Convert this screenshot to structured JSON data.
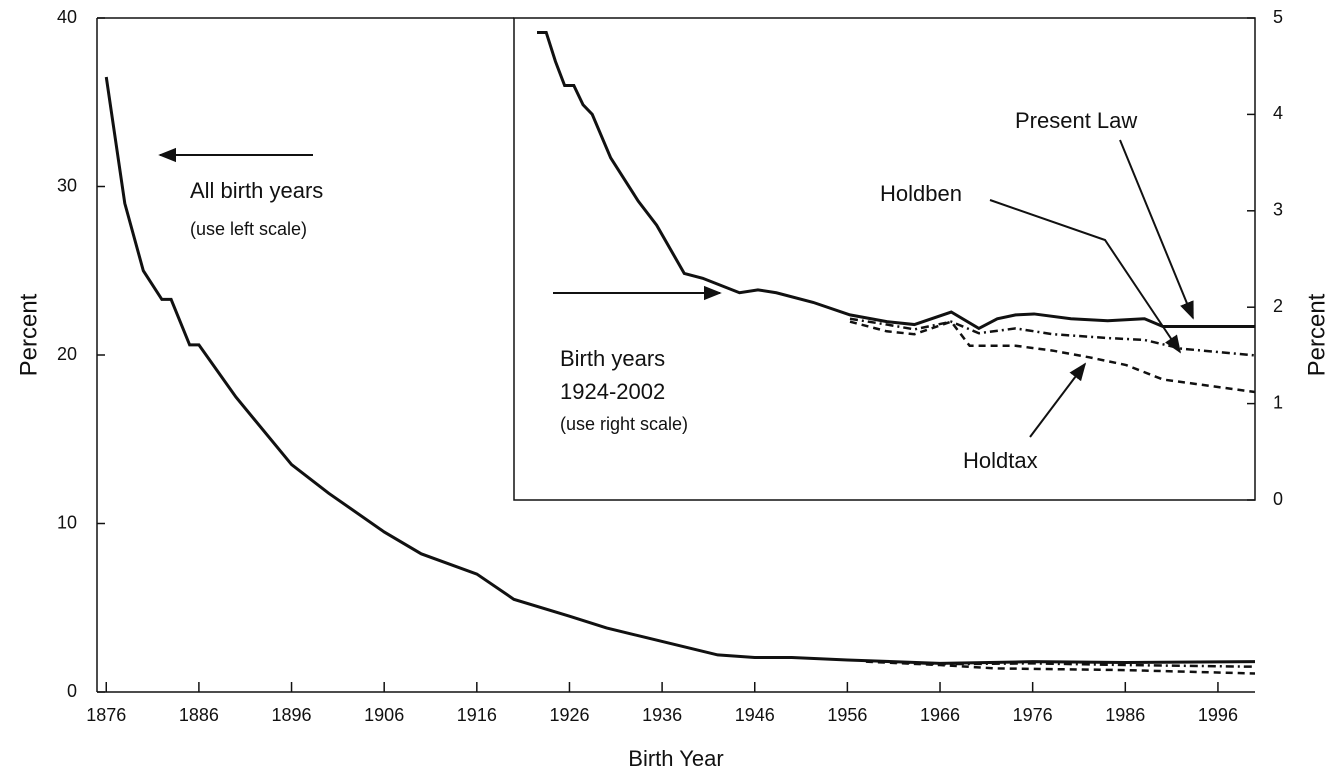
{
  "chart_data": [
    {
      "type": "line",
      "xlabel": "Birth Year",
      "ylabel": "Percent",
      "xlim": [
        1875,
        2000
      ],
      "xticks": [
        1876,
        1886,
        1896,
        1906,
        1916,
        1926,
        1936,
        1946,
        1956,
        1966,
        1976,
        1986,
        1996
      ],
      "ylim": [
        0,
        40
      ],
      "yticks": [
        0,
        10,
        20,
        30,
        40
      ],
      "annotations": [
        "All birth years",
        "(use left scale)"
      ],
      "series": [
        {
          "color": "#111111",
          "dash": "solid",
          "x": [
            1876,
            1878,
            1880,
            1882,
            1883,
            1885,
            1886,
            1890,
            1896,
            1900,
            1906,
            1910,
            1916,
            1920,
            1926,
            1930,
            1936,
            1942,
            1946,
            1950,
            1956,
            1966,
            1976,
            1986,
            2000
          ],
          "values": [
            36.5,
            29,
            25,
            23.3,
            23.3,
            20.6,
            20.6,
            17.5,
            13.5,
            11.8,
            9.5,
            8.2,
            7,
            5.5,
            4.5,
            3.8,
            3,
            2.2,
            2.05,
            2.05,
            1.9,
            1.7,
            1.8,
            1.75,
            1.8
          ]
        },
        {
          "color": "#111111",
          "dash": "dashdot",
          "x": [
            1958,
            1966,
            1976,
            1986,
            2000
          ],
          "values": [
            1.85,
            1.65,
            1.7,
            1.6,
            1.5
          ]
        },
        {
          "color": "#111111",
          "dash": "dash",
          "x": [
            1958,
            1966,
            1972,
            1986,
            2000
          ],
          "values": [
            1.8,
            1.6,
            1.4,
            1.3,
            1.1
          ]
        }
      ]
    },
    {
      "type": "line",
      "y2label": "Percent",
      "xlim": [
        1921.5,
        2002
      ],
      "y2lim": [
        0,
        5
      ],
      "y2ticks": [
        0,
        1,
        2,
        3,
        4,
        5
      ],
      "annotations": [
        "Birth years",
        "1924-2002",
        "(use right scale)"
      ],
      "series": [
        {
          "name": "Present Law",
          "color": "#111111",
          "dash": "solid",
          "axis": "y2",
          "x": [
            1924,
            1925,
            1926,
            1927,
            1928,
            1929,
            1930,
            1932,
            1935,
            1937,
            1940,
            1942,
            1946,
            1948,
            1950,
            1954,
            1958,
            1962,
            1965,
            1969,
            1972,
            1974,
            1976,
            1978,
            1982,
            1986,
            1990,
            1992,
            2002
          ],
          "values": [
            4.85,
            4.85,
            4.55,
            4.3,
            4.3,
            4.1,
            4.0,
            3.55,
            3.1,
            2.85,
            2.35,
            2.3,
            2.15,
            2.18,
            2.15,
            2.05,
            1.92,
            1.85,
            1.82,
            1.95,
            1.78,
            1.88,
            1.92,
            1.93,
            1.88,
            1.86,
            1.88,
            1.8,
            1.8
          ]
        },
        {
          "name": "Holdben",
          "color": "#111111",
          "dash": "dashdot",
          "axis": "y2",
          "x": [
            1958,
            1962,
            1965,
            1969,
            1972,
            1976,
            1980,
            1986,
            1990,
            1994,
            2002
          ],
          "values": [
            1.88,
            1.82,
            1.77,
            1.85,
            1.73,
            1.78,
            1.72,
            1.68,
            1.66,
            1.57,
            1.5
          ]
        },
        {
          "name": "Holdtax",
          "color": "#111111",
          "dash": "dash",
          "axis": "y2",
          "x": [
            1958,
            1962,
            1965,
            1969,
            1971,
            1976,
            1980,
            1984,
            1988,
            1992,
            2002
          ],
          "values": [
            1.85,
            1.75,
            1.72,
            1.85,
            1.6,
            1.6,
            1.55,
            1.48,
            1.4,
            1.25,
            1.12
          ]
        }
      ]
    }
  ]
}
